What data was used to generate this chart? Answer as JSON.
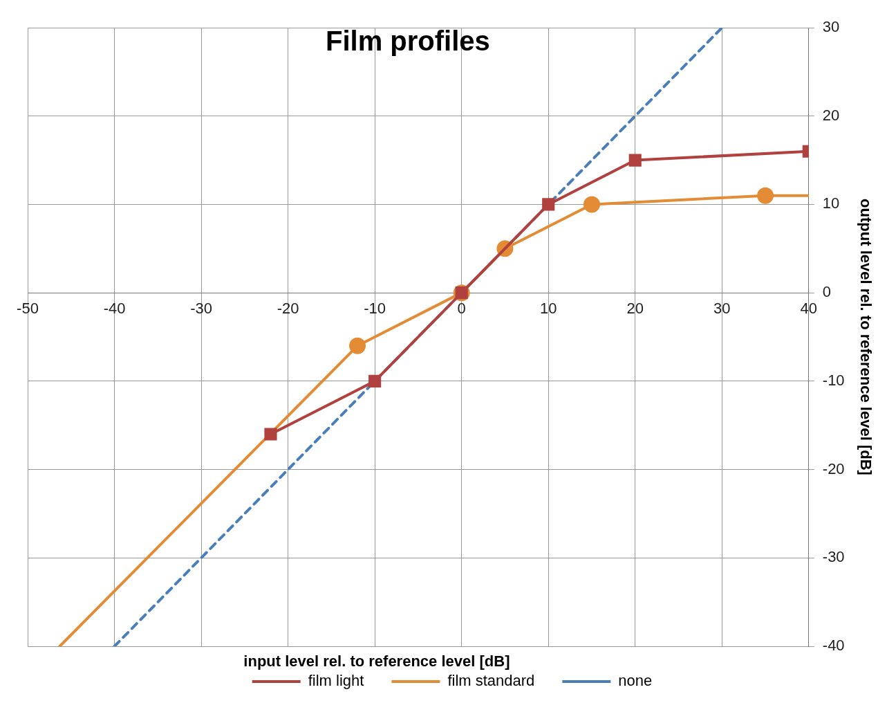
{
  "chart_data": {
    "type": "line",
    "title": "Film profiles",
    "xlabel": "input level rel. to reference level [dB]",
    "ylabel": "output level rel. to reference level [dB]",
    "xlim": [
      -50,
      40
    ],
    "xticks": [
      -50,
      -40,
      -30,
      -20,
      -10,
      0,
      10,
      20,
      30,
      40
    ],
    "ylim": [
      -40,
      30
    ],
    "yticks": [
      -40,
      -30,
      -20,
      -10,
      0,
      10,
      20,
      30
    ],
    "grid": true,
    "legend": "bottom",
    "series": [
      {
        "name": "film light",
        "color": "#b0413e",
        "marker": "square",
        "line_style": "solid",
        "x": [
          -22,
          -10,
          0,
          10,
          20,
          40
        ],
        "values": [
          -16,
          -10,
          0,
          10,
          15,
          16
        ]
      },
      {
        "name": "film standard",
        "color": "#e38b35",
        "marker": "circle",
        "line_style": "solid",
        "x": [
          -12,
          0,
          5,
          15,
          35
        ],
        "values": [
          -6,
          0,
          5,
          10,
          11
        ]
      },
      {
        "color": "#e38b35",
        "marker": "none",
        "line_style": "solid",
        "x": [
          -46.3,
          -12,
          20,
          35,
          40
        ],
        "values": [
          -40,
          -6,
          null,
          11,
          11
        ]
      },
      {
        "name": "none",
        "color": "#4a7ebb",
        "marker": "none",
        "line_style": "dashed",
        "x": [
          -40,
          30
        ],
        "values": [
          -40,
          30
        ]
      }
    ]
  }
}
